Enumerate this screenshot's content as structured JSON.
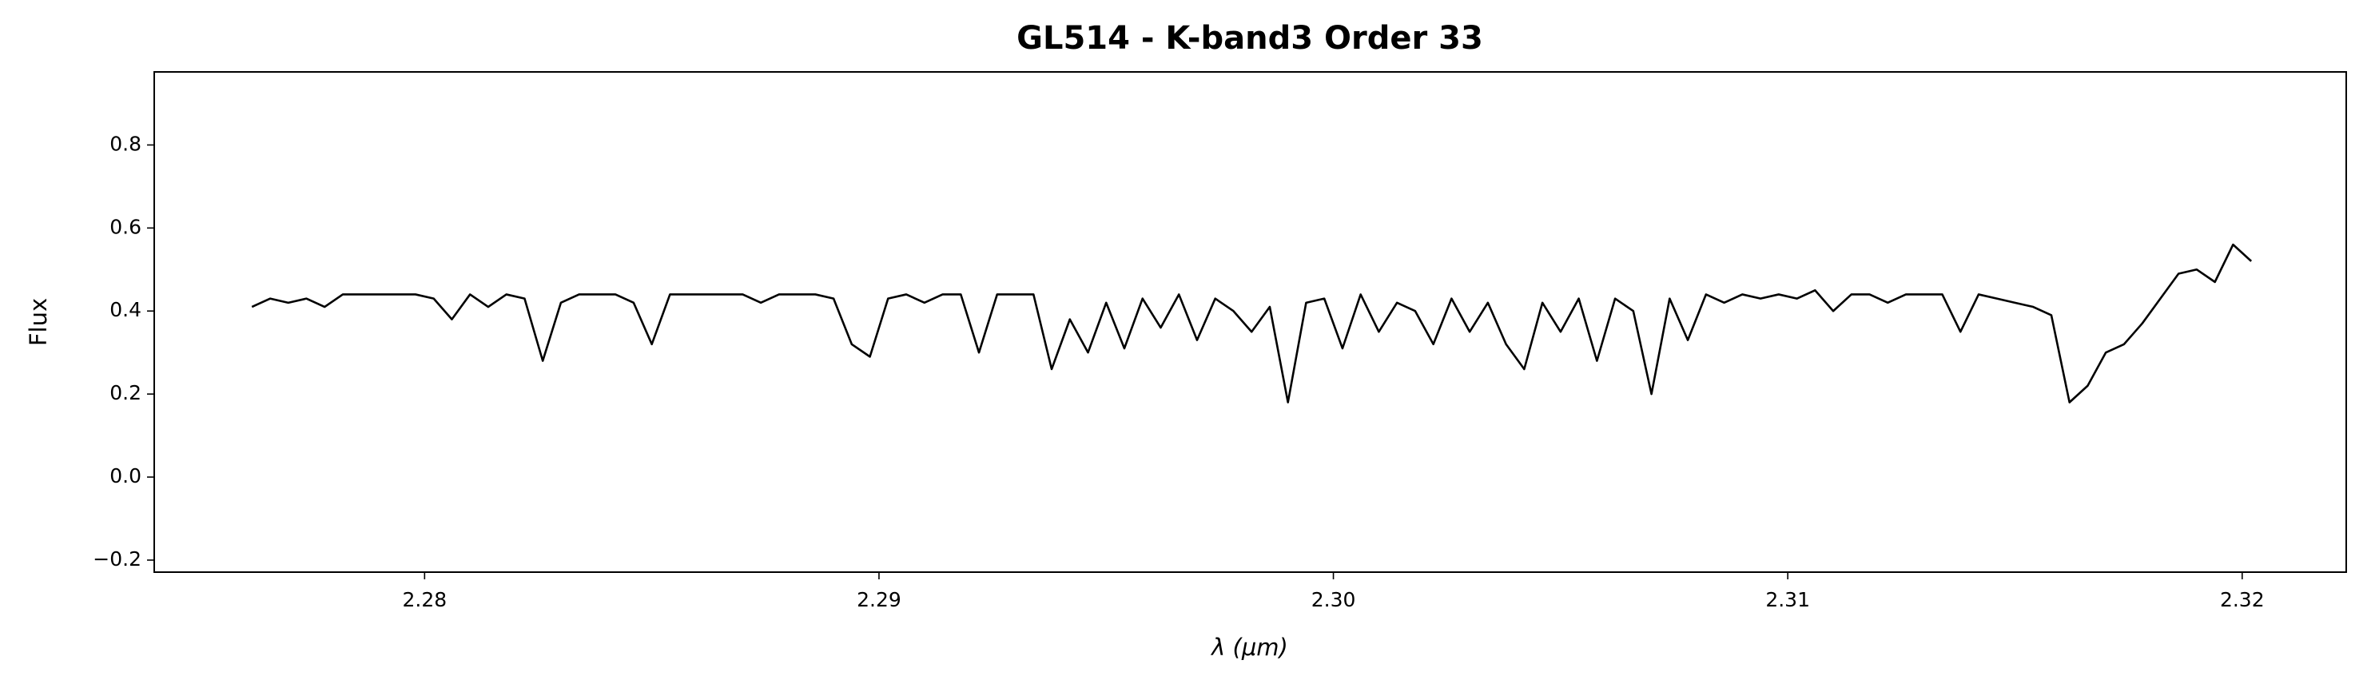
{
  "chart_data": {
    "type": "line",
    "title": "GL514 - K-band3 Order 33",
    "xlabel": "λ (μm)",
    "ylabel": "Flux",
    "x": [
      2.2762,
      2.2766,
      2.277,
      2.2774,
      2.2778,
      2.2782,
      2.2786,
      2.279,
      2.2794,
      2.2798,
      2.2802,
      2.2806,
      2.281,
      2.2814,
      2.2818,
      2.2822,
      2.2826,
      2.283,
      2.2834,
      2.2838,
      2.2842,
      2.2846,
      2.285,
      2.2854,
      2.2858,
      2.2862,
      2.2866,
      2.287,
      2.2874,
      2.2878,
      2.2882,
      2.2886,
      2.289,
      2.2894,
      2.2898,
      2.2902,
      2.2906,
      2.291,
      2.2914,
      2.2918,
      2.2922,
      2.2926,
      2.293,
      2.2934,
      2.2938,
      2.2942,
      2.2946,
      2.295,
      2.2954,
      2.2958,
      2.2962,
      2.2966,
      2.297,
      2.2974,
      2.2978,
      2.2982,
      2.2986,
      2.299,
      2.2994,
      2.2998,
      2.3002,
      2.3006,
      2.301,
      2.3014,
      2.3018,
      2.3022,
      2.3026,
      2.303,
      2.3034,
      2.3038,
      2.3042,
      2.3046,
      2.305,
      2.3054,
      2.3058,
      2.3062,
      2.3066,
      2.307,
      2.3074,
      2.3078,
      2.3082,
      2.3086,
      2.309,
      2.3094,
      2.3098,
      2.3102,
      2.3106,
      2.311,
      2.3114,
      2.3118,
      2.3122,
      2.3126,
      2.313,
      2.3134,
      2.3138,
      2.3142,
      2.3146,
      2.315,
      2.3154,
      2.3158,
      2.3162,
      2.3166,
      2.317,
      2.3174,
      2.3178,
      2.3182,
      2.3186,
      2.319,
      2.3194,
      2.3198,
      2.3202
    ],
    "series": [
      {
        "color": "#000000",
        "values": [
          0.41,
          0.43,
          0.42,
          0.43,
          0.41,
          0.44,
          0.44,
          0.44,
          0.44,
          0.44,
          0.43,
          0.38,
          0.44,
          0.41,
          0.44,
          0.43,
          0.28,
          0.42,
          0.44,
          0.44,
          0.44,
          0.42,
          0.32,
          0.44,
          0.44,
          0.44,
          0.44,
          0.44,
          0.42,
          0.44,
          0.44,
          0.44,
          0.43,
          0.32,
          0.29,
          0.43,
          0.44,
          0.42,
          0.44,
          0.44,
          0.3,
          0.44,
          0.44,
          0.44,
          0.26,
          0.38,
          0.3,
          0.42,
          0.31,
          0.43,
          0.36,
          0.44,
          0.33,
          0.43,
          0.4,
          0.35,
          0.41,
          0.18,
          0.42,
          0.43,
          0.31,
          0.44,
          0.35,
          0.42,
          0.4,
          0.32,
          0.43,
          0.35,
          0.42,
          0.32,
          0.26,
          0.42,
          0.35,
          0.43,
          0.28,
          0.43,
          0.4,
          0.2,
          0.43,
          0.33,
          0.44,
          0.42,
          0.44,
          0.43,
          0.44,
          0.43,
          0.45,
          0.4,
          0.44,
          0.44,
          0.42,
          0.44,
          0.44,
          0.44,
          0.35,
          0.44,
          0.43,
          0.42,
          0.41,
          0.39,
          0.18,
          0.22,
          0.3,
          0.32,
          0.37,
          0.43,
          0.49,
          0.5,
          0.47,
          0.56,
          0.52
        ]
      }
    ],
    "xlim": [
      2.27405,
      2.32229
    ],
    "ylim": [
      -0.229,
      0.976
    ],
    "xticks": [
      2.28,
      2.29,
      {
        "value": 2.3,
        "label": "2.30"
      },
      2.31,
      2.32
    ],
    "yticks": [
      {
        "value": -0.2,
        "label": "−0.2"
      },
      {
        "value": 0,
        "label": "0.0"
      },
      0.2,
      0.4,
      0.6,
      0.8
    ]
  }
}
